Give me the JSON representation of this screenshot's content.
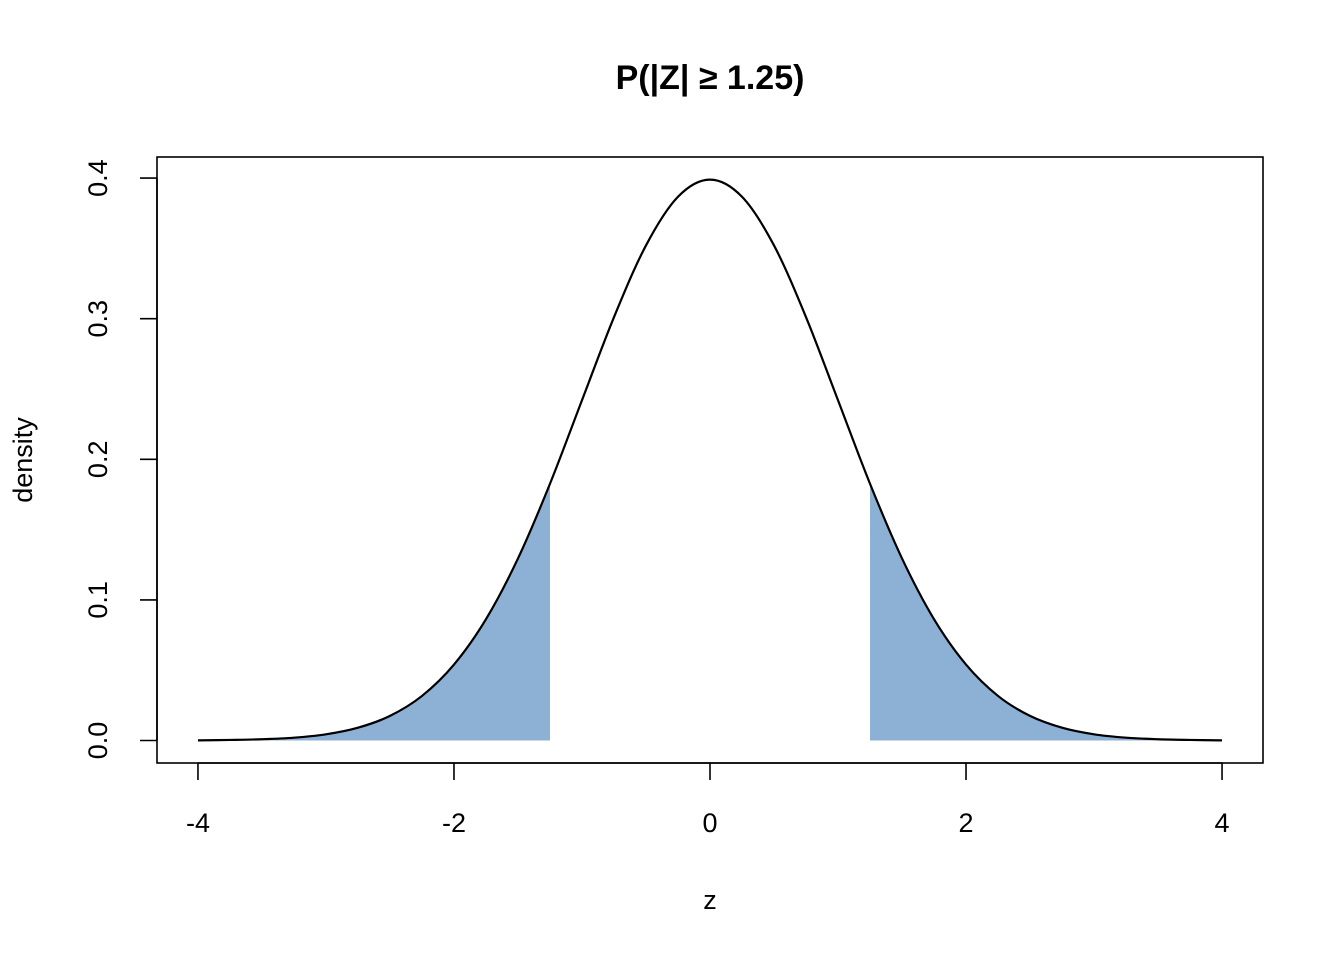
{
  "chart_data": {
    "type": "density",
    "title": "P(|Z| ≥ 1.25)",
    "x_label": "z",
    "y_label": "density",
    "x": [
      -4,
      -3.75,
      -3.5,
      -3.25,
      -3,
      -2.75,
      -2.5,
      -2.25,
      -2,
      -1.75,
      -1.5,
      -1.25,
      -1,
      -0.75,
      -0.5,
      -0.25,
      0,
      0.25,
      0.5,
      0.75,
      1,
      1.25,
      1.5,
      1.75,
      2,
      2.25,
      2.5,
      2.75,
      3,
      3.25,
      3.5,
      3.75,
      4
    ],
    "values": [
      0.0001,
      0.0004,
      0.0009,
      0.002,
      0.0044,
      0.0091,
      0.0175,
      0.0317,
      0.054,
      0.0863,
      0.1295,
      0.1826,
      0.242,
      0.3011,
      0.3521,
      0.3867,
      0.3989,
      0.3867,
      0.3521,
      0.3011,
      0.242,
      0.1826,
      0.1295,
      0.0863,
      0.054,
      0.0317,
      0.0175,
      0.0091,
      0.0044,
      0.002,
      0.0009,
      0.0004,
      0.0001
    ],
    "color": "#000000",
    "shade": {
      "below": -1.25,
      "above": 1.25,
      "color": "#8db1d4"
    },
    "xlim": [
      -4.32,
      4.32
    ],
    "ylim": [
      -0.016,
      0.415
    ],
    "xticks": [
      -4,
      -2,
      0,
      2,
      4
    ],
    "yticks": [
      {
        "value": 0,
        "label": "0.0"
      },
      0.1,
      0.2,
      0.3,
      0.4
    ]
  }
}
